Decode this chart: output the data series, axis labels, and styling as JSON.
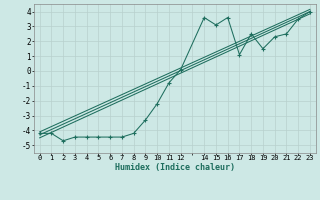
{
  "xlabel": "Humidex (Indice chaleur)",
  "xlim": [
    -0.5,
    23.5
  ],
  "ylim": [
    -5.5,
    4.5
  ],
  "yticks": [
    -5,
    -4,
    -3,
    -2,
    -1,
    0,
    1,
    2,
    3,
    4
  ],
  "xtick_positions": [
    0,
    1,
    2,
    3,
    4,
    5,
    6,
    7,
    8,
    9,
    10,
    11,
    12,
    13,
    14,
    15,
    16,
    17,
    18,
    19,
    20,
    21,
    22,
    23
  ],
  "xtick_labels": [
    "0",
    "1",
    "2",
    "3",
    "4",
    "5",
    "6",
    "7",
    "8",
    "9",
    "10",
    "11",
    "12",
    "",
    "14",
    "15",
    "16",
    "17",
    "18",
    "19",
    "20",
    "21",
    "22",
    "23"
  ],
  "background_color": "#cde8e5",
  "grid_color": "#b8d0ce",
  "line_color": "#1e6e5e",
  "data_x": [
    0,
    1,
    2,
    3,
    4,
    5,
    6,
    7,
    8,
    9,
    10,
    11,
    12,
    14,
    15,
    16,
    17,
    18,
    19,
    20,
    21,
    22,
    23
  ],
  "data_y": [
    -4.2,
    -4.2,
    -4.7,
    -4.45,
    -4.45,
    -4.45,
    -4.45,
    -4.45,
    -4.2,
    -3.3,
    -2.2,
    -0.8,
    0.1,
    3.6,
    3.1,
    3.6,
    1.1,
    2.5,
    1.5,
    2.3,
    2.5,
    3.5,
    4.0
  ],
  "fit_x0": 0,
  "fit_x1": 23,
  "fit_y_low0": -4.5,
  "fit_y_low1": 3.85,
  "fit_y_mid0": -4.3,
  "fit_y_mid1": 4.0,
  "fit_y_high0": -4.1,
  "fit_y_high1": 4.15
}
